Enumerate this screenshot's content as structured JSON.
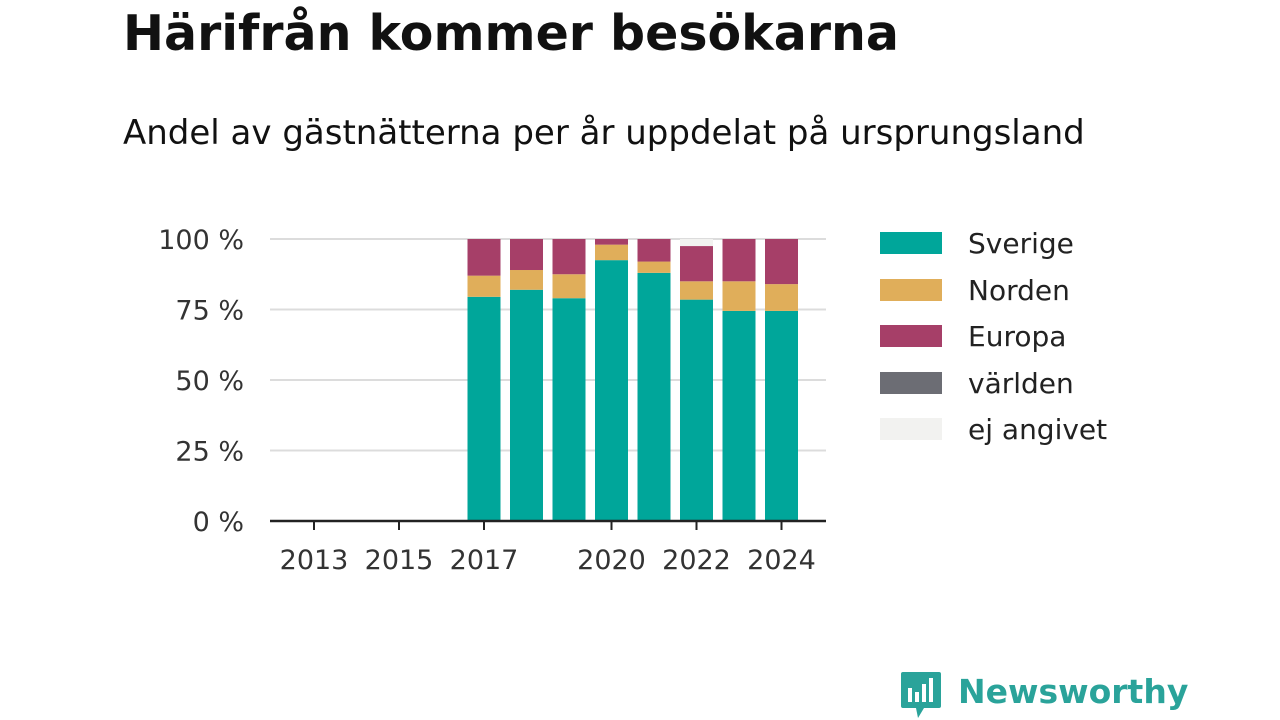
{
  "title": "Härifrån kommer besökarna",
  "subtitle": "Andel av gästnätterna per år uppdelat på ursprungsland",
  "chart_data": {
    "type": "bar",
    "stacked": true,
    "x": [
      2013,
      2014,
      2015,
      2016,
      2017,
      2018,
      2019,
      2020,
      2021,
      2022,
      2023,
      2024
    ],
    "x_ticks": [
      2013,
      2015,
      2017,
      2020,
      2022,
      2024
    ],
    "y_ticks": [
      "0 %",
      "25 %",
      "50 %",
      "75 %",
      "100 %"
    ],
    "ylim": [
      0,
      100
    ],
    "grid": true,
    "legend_position": "right",
    "series": [
      {
        "name": "Sverige",
        "color": "#00a69a",
        "values": [
          null,
          null,
          null,
          null,
          79.5,
          82,
          79,
          92.5,
          88,
          78.5,
          74.5,
          74.5
        ]
      },
      {
        "name": "Norden",
        "color": "#e0ae5a",
        "values": [
          null,
          null,
          null,
          null,
          7.5,
          7,
          8.5,
          5.5,
          4,
          6.5,
          10.5,
          9.5
        ]
      },
      {
        "name": "Europa",
        "color": "#a63f68",
        "values": [
          null,
          null,
          null,
          null,
          13,
          11,
          12.5,
          2,
          8,
          12.5,
          15,
          16
        ]
      },
      {
        "name": "världen",
        "color": "#6c6d74",
        "values": [
          null,
          null,
          null,
          null,
          0,
          0,
          0,
          0,
          0,
          0,
          0,
          0
        ]
      },
      {
        "name": "ej angivet",
        "color": "#f2f2f0",
        "values": [
          null,
          null,
          null,
          null,
          0,
          0,
          0,
          0,
          0,
          2.5,
          0,
          0
        ]
      }
    ]
  },
  "brand": {
    "name": "Newsworthy"
  }
}
